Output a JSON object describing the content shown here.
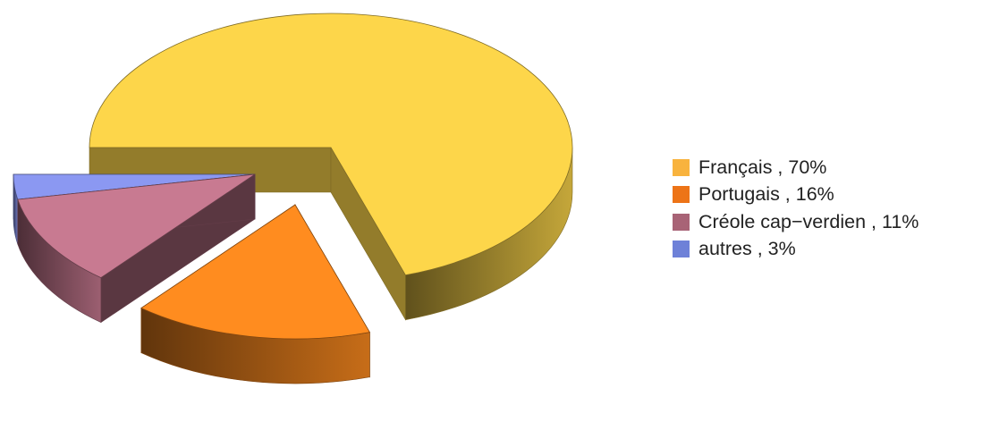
{
  "chart_data": {
    "type": "pie",
    "title": "",
    "style": "3d-exploded",
    "legend_position": "right",
    "slices": [
      {
        "label": "Français , 70%",
        "category": "Français",
        "value": 70,
        "color": "#FDD64A",
        "legend_color": "#F8B33E"
      },
      {
        "label": "Portugais , 16%",
        "category": "Portugais",
        "value": 16,
        "color": "#FF8C1F",
        "legend_color": "#ED7417"
      },
      {
        "label": "Créole cap−verdien , 11%",
        "category": "Créole cap−verdien",
        "value": 11,
        "color": "#C87A91",
        "legend_color": "#A86376"
      },
      {
        "label": "autres , 3%",
        "category": "autres",
        "value": 3,
        "color": "#8B98F2",
        "legend_color": "#6E81D8"
      }
    ]
  }
}
